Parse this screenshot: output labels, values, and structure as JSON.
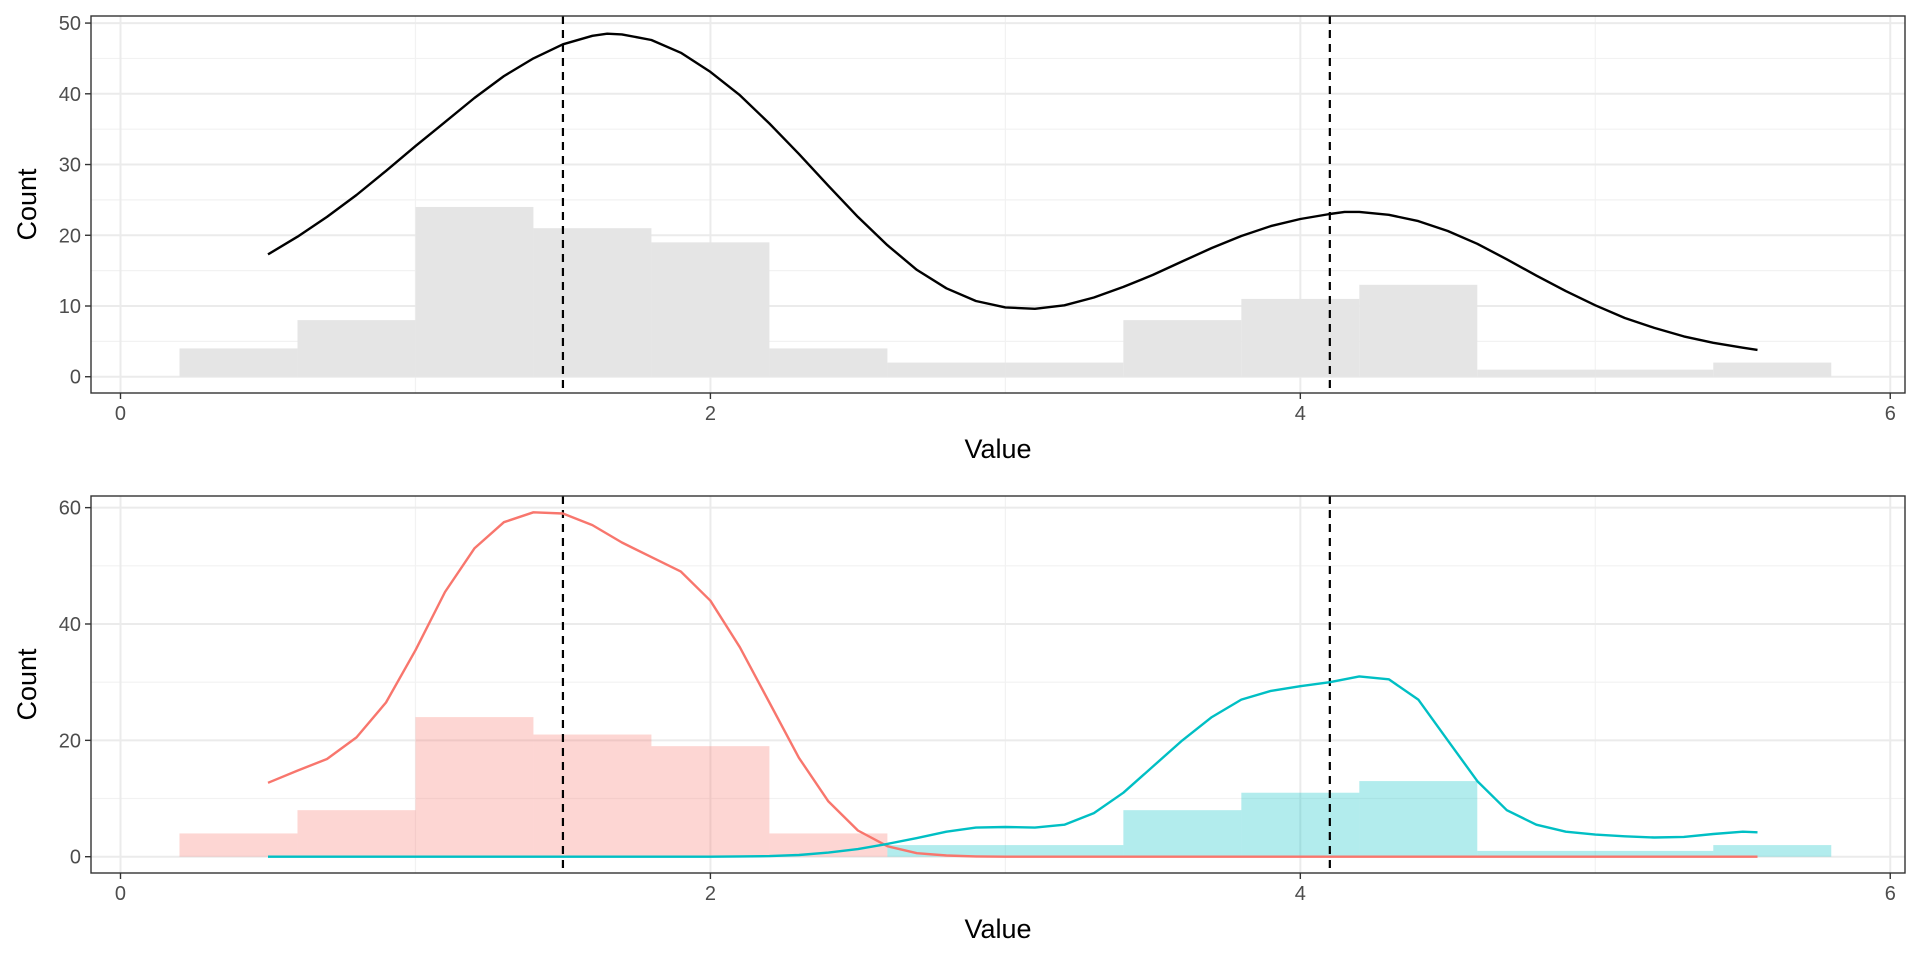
{
  "chart_data": [
    {
      "type": "histogram",
      "title": "",
      "xlabel": "Value",
      "ylabel": "Count",
      "xlim": [
        -0.1,
        6.05
      ],
      "ylim": [
        -2.3,
        51
      ],
      "x_ticks": [
        0,
        2,
        4,
        6
      ],
      "y_ticks": [
        0,
        10,
        20,
        30,
        40,
        50
      ],
      "grid": true,
      "colors": {
        "bars": "#e5e5e5",
        "density": "#000000",
        "vline": "#000000"
      },
      "bins": [
        {
          "x0": 0.2,
          "x1": 0.6,
          "count": 4
        },
        {
          "x0": 0.6,
          "x1": 1.0,
          "count": 8
        },
        {
          "x0": 1.0,
          "x1": 1.4,
          "count": 24
        },
        {
          "x0": 1.4,
          "x1": 1.8,
          "count": 21
        },
        {
          "x0": 1.8,
          "x1": 2.2,
          "count": 19
        },
        {
          "x0": 2.2,
          "x1": 2.6,
          "count": 4
        },
        {
          "x0": 2.6,
          "x1": 3.0,
          "count": 2
        },
        {
          "x0": 3.0,
          "x1": 3.4,
          "count": 2
        },
        {
          "x0": 3.4,
          "x1": 3.8,
          "count": 8
        },
        {
          "x0": 3.8,
          "x1": 4.2,
          "count": 11
        },
        {
          "x0": 4.2,
          "x1": 4.6,
          "count": 13
        },
        {
          "x0": 4.6,
          "x1": 5.0,
          "count": 1
        },
        {
          "x0": 5.0,
          "x1": 5.4,
          "count": 1
        },
        {
          "x0": 5.4,
          "x1": 5.8,
          "count": 2
        }
      ],
      "density": [
        [
          0.5,
          17.3
        ],
        [
          0.6,
          19.8
        ],
        [
          0.7,
          22.6
        ],
        [
          0.8,
          25.7
        ],
        [
          0.9,
          29.1
        ],
        [
          1.0,
          32.6
        ],
        [
          1.1,
          36.0
        ],
        [
          1.2,
          39.4
        ],
        [
          1.3,
          42.5
        ],
        [
          1.4,
          45.0
        ],
        [
          1.5,
          47.0
        ],
        [
          1.6,
          48.2
        ],
        [
          1.65,
          48.5
        ],
        [
          1.7,
          48.4
        ],
        [
          1.8,
          47.6
        ],
        [
          1.9,
          45.8
        ],
        [
          2.0,
          43.1
        ],
        [
          2.1,
          39.8
        ],
        [
          2.2,
          35.8
        ],
        [
          2.3,
          31.5
        ],
        [
          2.4,
          27.0
        ],
        [
          2.5,
          22.6
        ],
        [
          2.6,
          18.6
        ],
        [
          2.7,
          15.1
        ],
        [
          2.8,
          12.5
        ],
        [
          2.9,
          10.7
        ],
        [
          3.0,
          9.8
        ],
        [
          3.1,
          9.6
        ],
        [
          3.2,
          10.1
        ],
        [
          3.3,
          11.2
        ],
        [
          3.4,
          12.7
        ],
        [
          3.5,
          14.4
        ],
        [
          3.6,
          16.3
        ],
        [
          3.7,
          18.2
        ],
        [
          3.8,
          19.9
        ],
        [
          3.9,
          21.3
        ],
        [
          4.0,
          22.3
        ],
        [
          4.1,
          23.0
        ],
        [
          4.15,
          23.3
        ],
        [
          4.2,
          23.3
        ],
        [
          4.3,
          22.9
        ],
        [
          4.4,
          22.0
        ],
        [
          4.5,
          20.6
        ],
        [
          4.6,
          18.8
        ],
        [
          4.7,
          16.6
        ],
        [
          4.8,
          14.3
        ],
        [
          4.9,
          12.1
        ],
        [
          5.0,
          10.1
        ],
        [
          5.1,
          8.3
        ],
        [
          5.2,
          6.9
        ],
        [
          5.3,
          5.7
        ],
        [
          5.4,
          4.8
        ],
        [
          5.5,
          4.1
        ],
        [
          5.55,
          3.8
        ]
      ],
      "vlines": [
        1.5,
        4.1
      ]
    },
    {
      "type": "histogram",
      "title": "",
      "xlabel": "Value",
      "ylabel": "Count",
      "xlim": [
        -0.1,
        6.05
      ],
      "ylim": [
        -2.8,
        62
      ],
      "x_ticks": [
        0,
        2,
        4,
        6
      ],
      "y_ticks": [
        0,
        20,
        40,
        60
      ],
      "grid": true,
      "vlines": [
        1.5,
        4.1
      ],
      "series": [
        {
          "color": "#F8766D",
          "fill": "#F8766D",
          "bins": [
            {
              "x0": 0.2,
              "x1": 0.6,
              "count": 4
            },
            {
              "x0": 0.6,
              "x1": 1.0,
              "count": 8
            },
            {
              "x0": 1.0,
              "x1": 1.4,
              "count": 24
            },
            {
              "x0": 1.4,
              "x1": 1.8,
              "count": 21
            },
            {
              "x0": 1.8,
              "x1": 2.2,
              "count": 19
            },
            {
              "x0": 2.2,
              "x1": 2.6,
              "count": 4
            }
          ],
          "density": [
            [
              0.5,
              12.7
            ],
            [
              0.6,
              14.8
            ],
            [
              0.7,
              16.8
            ],
            [
              0.8,
              20.5
            ],
            [
              0.9,
              26.5
            ],
            [
              1.0,
              35.5
            ],
            [
              1.1,
              45.5
            ],
            [
              1.2,
              53.0
            ],
            [
              1.3,
              57.5
            ],
            [
              1.4,
              59.2
            ],
            [
              1.5,
              59.0
            ],
            [
              1.6,
              57.0
            ],
            [
              1.7,
              54.0
            ],
            [
              1.8,
              51.5
            ],
            [
              1.9,
              49.0
            ],
            [
              2.0,
              44.0
            ],
            [
              2.1,
              36.0
            ],
            [
              2.2,
              26.5
            ],
            [
              2.3,
              17.0
            ],
            [
              2.4,
              9.5
            ],
            [
              2.5,
              4.5
            ],
            [
              2.6,
              1.8
            ],
            [
              2.7,
              0.6
            ],
            [
              2.8,
              0.2
            ],
            [
              2.9,
              0.05
            ],
            [
              3.0,
              0.0
            ],
            [
              3.5,
              0.0
            ],
            [
              4.0,
              0.0
            ],
            [
              4.5,
              0.0
            ],
            [
              5.0,
              0.0
            ],
            [
              5.55,
              0.0
            ]
          ]
        },
        {
          "color": "#00BFC4",
          "fill": "#00BFC4",
          "bins": [
            {
              "x0": 2.6,
              "x1": 3.0,
              "count": 2
            },
            {
              "x0": 3.0,
              "x1": 3.4,
              "count": 2
            },
            {
              "x0": 3.4,
              "x1": 3.8,
              "count": 8
            },
            {
              "x0": 3.8,
              "x1": 4.2,
              "count": 11
            },
            {
              "x0": 4.2,
              "x1": 4.6,
              "count": 13
            },
            {
              "x0": 4.6,
              "x1": 5.0,
              "count": 1
            },
            {
              "x0": 5.0,
              "x1": 5.4,
              "count": 1
            },
            {
              "x0": 5.4,
              "x1": 5.8,
              "count": 2
            }
          ],
          "density": [
            [
              0.5,
              0.0
            ],
            [
              1.0,
              0.0
            ],
            [
              1.5,
              0.0
            ],
            [
              2.0,
              0.0
            ],
            [
              2.1,
              0.05
            ],
            [
              2.2,
              0.1
            ],
            [
              2.3,
              0.3
            ],
            [
              2.4,
              0.7
            ],
            [
              2.5,
              1.3
            ],
            [
              2.6,
              2.2
            ],
            [
              2.7,
              3.2
            ],
            [
              2.8,
              4.3
            ],
            [
              2.9,
              5.0
            ],
            [
              3.0,
              5.1
            ],
            [
              3.1,
              5.0
            ],
            [
              3.2,
              5.5
            ],
            [
              3.3,
              7.5
            ],
            [
              3.4,
              11.0
            ],
            [
              3.5,
              15.5
            ],
            [
              3.6,
              20.0
            ],
            [
              3.7,
              24.0
            ],
            [
              3.8,
              27.0
            ],
            [
              3.9,
              28.5
            ],
            [
              4.0,
              29.3
            ],
            [
              4.1,
              30.0
            ],
            [
              4.2,
              31.0
            ],
            [
              4.3,
              30.5
            ],
            [
              4.4,
              27.0
            ],
            [
              4.5,
              20.0
            ],
            [
              4.6,
              13.0
            ],
            [
              4.7,
              8.0
            ],
            [
              4.8,
              5.5
            ],
            [
              4.9,
              4.3
            ],
            [
              5.0,
              3.8
            ],
            [
              5.1,
              3.5
            ],
            [
              5.2,
              3.3
            ],
            [
              5.3,
              3.4
            ],
            [
              5.4,
              3.9
            ],
            [
              5.5,
              4.3
            ],
            [
              5.55,
              4.2
            ]
          ]
        }
      ]
    }
  ]
}
